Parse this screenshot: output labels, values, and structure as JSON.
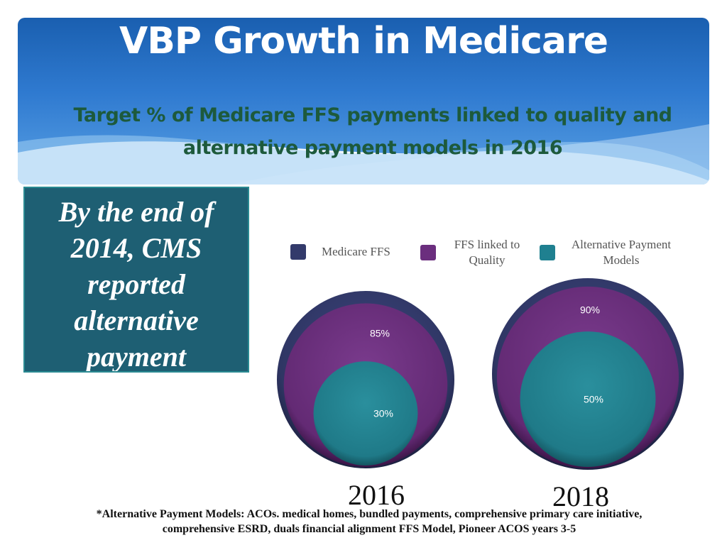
{
  "slide": {
    "title": "VBP Growth in Medicare",
    "subtitle_line1": "Target % of Medicare FFS payments linked to quality and",
    "subtitle_line2": "alternative payment models in 2016",
    "callout_text": "By the end of 2014, CMS reported alternative payment",
    "footnote_line1": "*Alternative Payment Models: ACOs. medical homes, bundled payments, comprehensive primary care initiative,",
    "footnote_line2": "comprehensive ESRD, duals financial alignment FFS Model, Pioneer ACOS years 3-5"
  },
  "colors": {
    "header": "#2f7ad0",
    "medicare_ffs": "#333a6b",
    "ffs_quality": "#6b2e7e",
    "apm": "#1f8090",
    "callout": "#1e5f73"
  },
  "chart_data": {
    "type": "nested-circles",
    "legend": [
      {
        "label": "Medicare FFS",
        "color": "#333a6b"
      },
      {
        "label": "FFS linked to Quality",
        "color": "#6b2e7e"
      },
      {
        "label": "Alternative Payment Models",
        "color": "#1f8090"
      }
    ],
    "groups": [
      {
        "year": "2016",
        "ffs_linked_to_quality": 85,
        "alternative_payment_models": 30,
        "labels": [
          "85%",
          "30%"
        ]
      },
      {
        "year": "2018",
        "ffs_linked_to_quality": 90,
        "alternative_payment_models": 50,
        "labels": [
          "90%",
          "50%"
        ]
      }
    ]
  }
}
